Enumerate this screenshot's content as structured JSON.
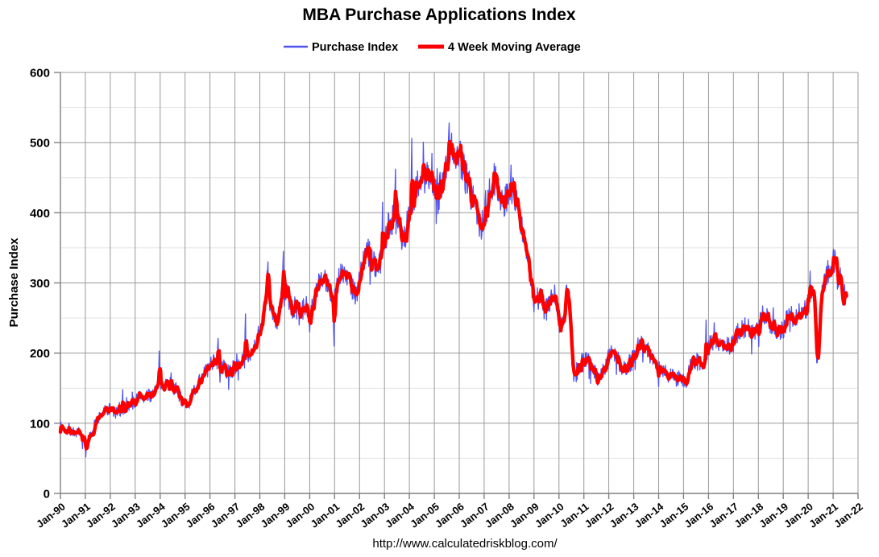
{
  "title": "MBA Purchase Applications Index",
  "footer": "http://www.calculatedriskblog.com/",
  "legend": {
    "position": "top",
    "items": [
      {
        "label": "Purchase Index",
        "color": "#5052f0",
        "key_thickness": 2.5
      },
      {
        "label": "4 Week Moving Average",
        "color": "#ff0000",
        "key_thickness": 5
      }
    ]
  },
  "chart_data": {
    "type": "line",
    "title": "MBA Purchase Applications Index",
    "xlabel": "",
    "ylabel": "Purchase Index",
    "ylim": [
      0,
      600
    ],
    "xlim": [
      1990,
      2022
    ],
    "y_ticks": [
      0,
      100,
      200,
      300,
      400,
      500,
      600
    ],
    "y_minor_step": 50,
    "x_tick_labels": [
      "Jan-90",
      "Jan-91",
      "Jan-92",
      "Jan-93",
      "Jan-94",
      "Jan-95",
      "Jan-96",
      "Jan-97",
      "Jan-98",
      "Jan-99",
      "Jan-00",
      "Jan-01",
      "Jan-02",
      "Jan-03",
      "Jan-04",
      "Jan-05",
      "Jan-06",
      "Jan-07",
      "Jan-08",
      "Jan-09",
      "Jan-10",
      "Jan-11",
      "Jan-12",
      "Jan-13",
      "Jan-14",
      "Jan-15",
      "Jan-16",
      "Jan-17",
      "Jan-18",
      "Jan-19",
      "Jan-20",
      "Jan-21",
      "Jan-22"
    ],
    "grid": {
      "major_color": "#999999",
      "minor_color": "#e4e4e4",
      "axis_color": "#808080"
    },
    "legend_position": "top",
    "series": [
      {
        "name": "Purchase Index",
        "color": "#5052f0",
        "width": 1.3,
        "role": "weekly"
      },
      {
        "name": "4 Week Moving Average",
        "color": "#ff0000",
        "width": 4.4,
        "role": "moving_average",
        "window": 4
      }
    ],
    "x_start": 1990.0,
    "x_end": 2021.55,
    "points_per_year": 52,
    "ma_anchor_points": [
      [
        1990.0,
        95
      ],
      [
        1990.2,
        91
      ],
      [
        1990.4,
        89
      ],
      [
        1990.6,
        87
      ],
      [
        1990.8,
        82
      ],
      [
        1990.95,
        76
      ],
      [
        1991.05,
        72
      ],
      [
        1991.2,
        82
      ],
      [
        1991.4,
        100
      ],
      [
        1991.6,
        112
      ],
      [
        1991.8,
        118
      ],
      [
        1992.0,
        121
      ],
      [
        1992.2,
        114
      ],
      [
        1992.4,
        117
      ],
      [
        1992.6,
        122
      ],
      [
        1992.8,
        127
      ],
      [
        1993.0,
        131
      ],
      [
        1993.2,
        140
      ],
      [
        1993.4,
        136
      ],
      [
        1993.6,
        140
      ],
      [
        1993.8,
        147
      ],
      [
        1994.0,
        155
      ],
      [
        1994.2,
        157
      ],
      [
        1994.4,
        156
      ],
      [
        1994.6,
        150
      ],
      [
        1994.8,
        138
      ],
      [
        1995.0,
        126
      ],
      [
        1995.1,
        122
      ],
      [
        1995.3,
        142
      ],
      [
        1995.5,
        157
      ],
      [
        1995.75,
        170
      ],
      [
        1996.0,
        181
      ],
      [
        1996.2,
        193
      ],
      [
        1996.4,
        182
      ],
      [
        1996.6,
        172
      ],
      [
        1996.8,
        174
      ],
      [
        1997.0,
        180
      ],
      [
        1997.2,
        186
      ],
      [
        1997.4,
        192
      ],
      [
        1997.6,
        201
      ],
      [
        1997.8,
        212
      ],
      [
        1997.95,
        228
      ],
      [
        1998.05,
        240
      ],
      [
        1998.18,
        262
      ],
      [
        1998.3,
        306
      ],
      [
        1998.4,
        265
      ],
      [
        1998.55,
        252
      ],
      [
        1998.68,
        243
      ],
      [
        1998.8,
        268
      ],
      [
        1998.95,
        290
      ],
      [
        1999.1,
        288
      ],
      [
        1999.3,
        258
      ],
      [
        1999.45,
        268
      ],
      [
        1999.6,
        250
      ],
      [
        1999.75,
        262
      ],
      [
        1999.9,
        268
      ],
      [
        2000.05,
        258
      ],
      [
        2000.2,
        280
      ],
      [
        2000.4,
        300
      ],
      [
        2000.6,
        302
      ],
      [
        2000.8,
        296
      ],
      [
        2000.97,
        272
      ],
      [
        2001.1,
        300
      ],
      [
        2001.25,
        318
      ],
      [
        2001.4,
        312
      ],
      [
        2001.55,
        308
      ],
      [
        2001.7,
        295
      ],
      [
        2001.85,
        284
      ],
      [
        2002.0,
        305
      ],
      [
        2002.15,
        330
      ],
      [
        2002.3,
        345
      ],
      [
        2002.45,
        337
      ],
      [
        2002.6,
        330
      ],
      [
        2002.75,
        322
      ],
      [
        2002.9,
        340
      ],
      [
        2003.05,
        368
      ],
      [
        2003.2,
        380
      ],
      [
        2003.35,
        398
      ],
      [
        2003.5,
        408
      ],
      [
        2003.65,
        372
      ],
      [
        2003.8,
        362
      ],
      [
        2003.95,
        390
      ],
      [
        2004.1,
        405
      ],
      [
        2004.25,
        432
      ],
      [
        2004.4,
        450
      ],
      [
        2004.55,
        448
      ],
      [
        2004.7,
        452
      ],
      [
        2004.85,
        442
      ],
      [
        2005.0,
        438
      ],
      [
        2005.15,
        420
      ],
      [
        2005.3,
        445
      ],
      [
        2005.45,
        468
      ],
      [
        2005.6,
        497
      ],
      [
        2005.75,
        492
      ],
      [
        2005.9,
        485
      ],
      [
        2006.0,
        478
      ],
      [
        2006.15,
        462
      ],
      [
        2006.3,
        448
      ],
      [
        2006.45,
        430
      ],
      [
        2006.6,
        413
      ],
      [
        2006.75,
        392
      ],
      [
        2006.9,
        383
      ],
      [
        2007.05,
        395
      ],
      [
        2007.2,
        424
      ],
      [
        2007.35,
        440
      ],
      [
        2007.5,
        444
      ],
      [
        2007.65,
        428
      ],
      [
        2007.8,
        415
      ],
      [
        2007.95,
        432
      ],
      [
        2008.05,
        440
      ],
      [
        2008.2,
        428
      ],
      [
        2008.35,
        405
      ],
      [
        2008.5,
        385
      ],
      [
        2008.65,
        350
      ],
      [
        2008.8,
        322
      ],
      [
        2008.92,
        290
      ],
      [
        2009.0,
        272
      ],
      [
        2009.1,
        280
      ],
      [
        2009.25,
        278
      ],
      [
        2009.4,
        265
      ],
      [
        2009.55,
        262
      ],
      [
        2009.7,
        282
      ],
      [
        2009.85,
        286
      ],
      [
        2009.95,
        262
      ],
      [
        2010.05,
        232
      ],
      [
        2010.15,
        240
      ],
      [
        2010.28,
        282
      ],
      [
        2010.36,
        288
      ],
      [
        2010.45,
        240
      ],
      [
        2010.55,
        172
      ],
      [
        2010.65,
        165
      ],
      [
        2010.8,
        178
      ],
      [
        2010.95,
        190
      ],
      [
        2011.1,
        192
      ],
      [
        2011.25,
        184
      ],
      [
        2011.4,
        175
      ],
      [
        2011.55,
        164
      ],
      [
        2011.7,
        170
      ],
      [
        2011.85,
        182
      ],
      [
        2012.0,
        195
      ],
      [
        2012.15,
        202
      ],
      [
        2012.3,
        198
      ],
      [
        2012.45,
        185
      ],
      [
        2012.6,
        176
      ],
      [
        2012.75,
        182
      ],
      [
        2012.9,
        192
      ],
      [
        2013.05,
        200
      ],
      [
        2013.2,
        212
      ],
      [
        2013.35,
        215
      ],
      [
        2013.5,
        208
      ],
      [
        2013.65,
        198
      ],
      [
        2013.8,
        190
      ],
      [
        2013.95,
        182
      ],
      [
        2014.1,
        175
      ],
      [
        2014.25,
        172
      ],
      [
        2014.4,
        172
      ],
      [
        2014.55,
        168
      ],
      [
        2014.7,
        163
      ],
      [
        2014.85,
        166
      ],
      [
        2015.0,
        160
      ],
      [
        2015.1,
        158
      ],
      [
        2015.25,
        180
      ],
      [
        2015.4,
        190
      ],
      [
        2015.55,
        188
      ],
      [
        2015.7,
        180
      ],
      [
        2015.85,
        182
      ],
      [
        2016.0,
        208
      ],
      [
        2016.15,
        218
      ],
      [
        2016.3,
        220
      ],
      [
        2016.45,
        213
      ],
      [
        2016.6,
        208
      ],
      [
        2016.75,
        212
      ],
      [
        2016.9,
        209
      ],
      [
        2017.05,
        222
      ],
      [
        2017.2,
        230
      ],
      [
        2017.35,
        234
      ],
      [
        2017.5,
        238
      ],
      [
        2017.65,
        232
      ],
      [
        2017.8,
        229
      ],
      [
        2017.95,
        236
      ],
      [
        2018.1,
        250
      ],
      [
        2018.25,
        254
      ],
      [
        2018.4,
        246
      ],
      [
        2018.55,
        240
      ],
      [
        2018.7,
        232
      ],
      [
        2018.85,
        226
      ],
      [
        2019.0,
        235
      ],
      [
        2019.15,
        248
      ],
      [
        2019.3,
        258
      ],
      [
        2019.45,
        250
      ],
      [
        2019.6,
        255
      ],
      [
        2019.75,
        265
      ],
      [
        2019.85,
        258
      ],
      [
        2020.0,
        270
      ],
      [
        2020.1,
        290
      ],
      [
        2020.2,
        288
      ],
      [
        2020.3,
        230
      ],
      [
        2020.38,
        192
      ],
      [
        2020.48,
        255
      ],
      [
        2020.58,
        300
      ],
      [
        2020.7,
        318
      ],
      [
        2020.8,
        314
      ],
      [
        2020.9,
        318
      ],
      [
        2021.0,
        336
      ],
      [
        2021.08,
        332
      ],
      [
        2021.18,
        308
      ],
      [
        2021.3,
        292
      ],
      [
        2021.4,
        284
      ],
      [
        2021.5,
        280
      ]
    ],
    "weekly_spikes": [
      [
        1991.02,
        52
      ],
      [
        1992.5,
        148
      ],
      [
        1993.97,
        203
      ],
      [
        1996.33,
        221
      ],
      [
        1997.42,
        256
      ],
      [
        1998.32,
        330
      ],
      [
        1998.95,
        345
      ],
      [
        2000.0,
        230
      ],
      [
        2000.98,
        210
      ],
      [
        2002.93,
        415
      ],
      [
        2003.45,
        462
      ],
      [
        2004.1,
        506
      ],
      [
        2005.6,
        528
      ],
      [
        2006.03,
        502
      ],
      [
        2007.4,
        470
      ],
      [
        2008.08,
        468
      ],
      [
        2010.3,
        297
      ],
      [
        2014.0,
        152
      ],
      [
        2015.9,
        247
      ],
      [
        2020.07,
        317
      ],
      [
        2020.35,
        186
      ],
      [
        2021.02,
        348
      ]
    ],
    "weekly_noise": {
      "base": 3,
      "proportional": 0.05,
      "spike_prob": 0.05,
      "spike_mult": 2.2,
      "seed": 7
    }
  }
}
